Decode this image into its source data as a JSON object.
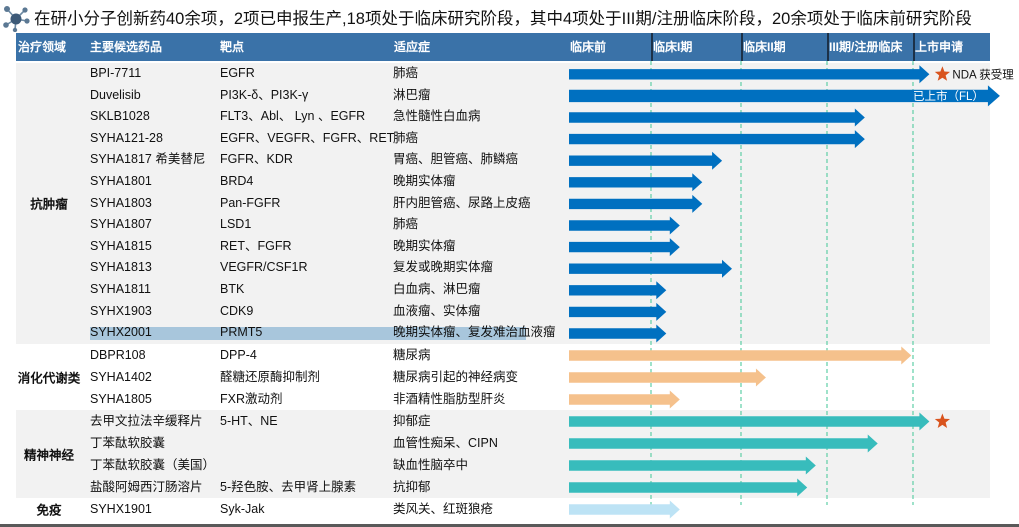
{
  "title": {
    "icon": "molecule-icon",
    "text": "在研小分子创新药40余项，2项已申报生产,18项处于临床研究阶段，其中4项处于III期/注册临床阶段，20余项处于临床前研究阶段"
  },
  "header": {
    "columns": [
      "治疗领域",
      "主要候选药品",
      "靶点",
      "适应症"
    ],
    "stages": [
      "临床前",
      "临床I期",
      "临床II期",
      "III期/注册临床",
      "上市申请"
    ]
  },
  "progress_scale_note": "progress_stage: 0 = start of 临床前, 1 = 临床I期, 2 = 临床II期, 3 = III期/注册临床, 4 = 上市申请, 5 = end of 上市申请",
  "colors": {
    "header_bg": "#3a72a8",
    "stage_gridline": "#5fcfa6",
    "marker_star": "#d9541e",
    "selected_row": "#a8c6dc"
  },
  "sections": [
    {
      "domain": "抗肿瘤",
      "arrow_color": "#0070c0",
      "rows": [
        {
          "drug": "BPI-7711",
          "target": "EGFR",
          "indication": "肺癌",
          "progress_stage": 4.2,
          "marker": "star",
          "marker_label": "NDA 获受理"
        },
        {
          "drug": "Duvelisib",
          "target": "PI3K-δ、PI3K-γ",
          "indication": "淋巴瘤",
          "progress_stage": 5.06,
          "inside_label": "已上市（FL）"
        },
        {
          "drug": "SKLB1028",
          "target": "FLT3、Abl、 Lyn 、EGFR",
          "indication": "急性髓性白血病",
          "progress_stage": 3.44
        },
        {
          "drug": "SYHA121-28",
          "target": "EGFR、VEGFR、FGFR、RET",
          "indication": "肺癌",
          "progress_stage": 3.44
        },
        {
          "drug": "SYHA1817 希美替尼",
          "target": "FGFR、KDR",
          "indication": "胃癌、胆管癌、肺鳞癌",
          "progress_stage": 1.79
        },
        {
          "drug": "SYHA1801",
          "target": "BRD4",
          "indication": "晚期实体瘤",
          "progress_stage": 1.57
        },
        {
          "drug": "SYHA1803",
          "target": "Pan-FGFR",
          "indication": "肝内胆管癌、尿路上皮癌",
          "progress_stage": 1.57
        },
        {
          "drug": "SYHA1807",
          "target": "LSD1",
          "indication": "肺癌",
          "progress_stage": 1.32
        },
        {
          "drug": "SYHA1815",
          "target": "RET、FGFR",
          "indication": "晚期实体瘤",
          "progress_stage": 1.32
        },
        {
          "drug": "SYHA1813",
          "target": "VEGFR/CSF1R",
          "indication": "复发或晚期实体瘤",
          "progress_stage": 1.9
        },
        {
          "drug": "SYHA1811",
          "target": "BTK",
          "indication": "白血病、淋巴瘤",
          "progress_stage": 1.17
        },
        {
          "drug": "SYHX1903",
          "target": "CDK9",
          "indication": "血液瘤、实体瘤",
          "progress_stage": 1.17
        },
        {
          "drug": "SYHX2001",
          "target": "PRMT5",
          "indication": "晚期实体瘤、复发难治血液瘤",
          "progress_stage": 1.17,
          "selected": true
        }
      ]
    },
    {
      "domain": "消化代谢类",
      "arrow_color": "#f5c18c",
      "rows": [
        {
          "drug": "DBPR108",
          "target": "DPP-4",
          "indication": "糖尿病",
          "progress_stage": 3.98
        },
        {
          "drug": "SYHA1402",
          "target": "醛糖还原酶抑制剂",
          "indication": "糖尿病引起的神经病变",
          "progress_stage": 2.29
        },
        {
          "drug": "SYHA1805",
          "target": "FXR激动剂",
          "indication": "非酒精性脂肪型肝炎",
          "progress_stage": 1.32
        }
      ]
    },
    {
      "domain": "精神神经",
      "arrow_color": "#38bcbc",
      "rows": [
        {
          "drug": "去甲文拉法辛缓释片",
          "target": "5-HT、NE",
          "indication": "抑郁症",
          "progress_stage": 4.2,
          "marker": "star"
        },
        {
          "drug": "丁苯酞软胶囊",
          "target": "",
          "indication": "血管性痴呆、CIPN",
          "progress_stage": 3.59
        },
        {
          "drug": "丁苯酞软胶囊（美国）",
          "target": "",
          "indication": "缺血性脑卒中",
          "progress_stage": 2.87
        },
        {
          "drug": "盐酸阿姆西汀肠溶片",
          "target": "5-羟色胺、去甲肾上腺素",
          "indication": "抗抑郁",
          "progress_stage": 2.77
        }
      ]
    },
    {
      "domain": "免疫",
      "arrow_color": "#bde3f5",
      "rows": [
        {
          "drug": "SYHX1901",
          "target": "Syk-Jak",
          "indication": "类风关、红斑狼疮",
          "progress_stage": 1.32
        }
      ]
    }
  ]
}
